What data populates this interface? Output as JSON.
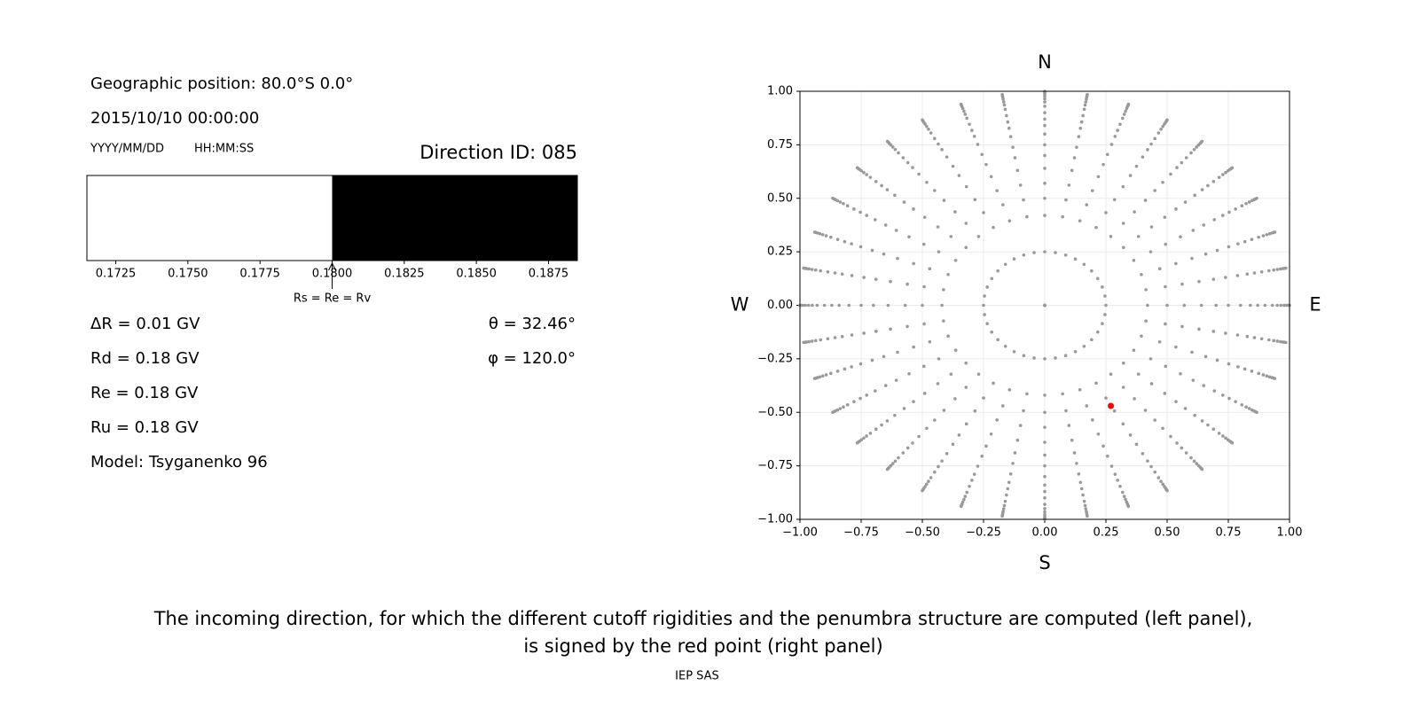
{
  "info": {
    "position": "Geographic position: 80.0°S 0.0°",
    "datetime": "2015/10/10 00:00:00",
    "date_format": "YYYY/MM/DD",
    "time_format": "HH:MM:SS",
    "direction": "Direction ID: 085",
    "delta_r": "ΔR = 0.01 GV",
    "rd": "Rd = 0.18 GV",
    "re": "Re = 0.18 GV",
    "ru": "Ru = 0.18 GV",
    "model": "Model: Tsyganenko 96",
    "theta": "θ = 32.46°",
    "phi": "φ = 120.0°"
  },
  "caption": [
    "The incoming direction, for which the different cutoff rigidities and the penumbra structure are computed (left panel),",
    "is signed by the red point (right panel)"
  ],
  "footer": "IEP SAS",
  "chart_data": [
    {
      "type": "penumbra",
      "xlim": [
        0.1715,
        0.1885
      ],
      "xticks": [
        0.1725,
        {
          "value": 0.175,
          "label": "0.1750"
        },
        0.1775,
        {
          "value": 0.18,
          "label": "0.1800"
        },
        0.1825,
        {
          "value": 0.185,
          "label": "0.1850"
        },
        0.1875
      ],
      "boundary": 0.18,
      "colors": [
        "#ffffff",
        "#000000"
      ],
      "annotation": "Rs = Re = Rv"
    },
    {
      "type": "scatter",
      "xlim": [
        -1,
        1
      ],
      "ylim": [
        -1,
        1
      ],
      "xticks": [
        {
          "value": -1,
          "label": "−1.00"
        },
        {
          "value": -0.75,
          "label": "−0.75"
        },
        {
          "value": -0.5,
          "label": "−0.50"
        },
        {
          "value": -0.25,
          "label": "−0.25"
        },
        {
          "value": 0,
          "label": "0.00"
        },
        0.25,
        {
          "value": 0.5,
          "label": "0.50"
        },
        0.75,
        {
          "value": 1,
          "label": "1.00"
        }
      ],
      "yticks": [
        {
          "value": -1,
          "label": "−1.00"
        },
        {
          "value": -0.75,
          "label": "−0.75"
        },
        {
          "value": -0.5,
          "label": "−0.50"
        },
        {
          "value": -0.25,
          "label": "−0.25"
        },
        {
          "value": 0,
          "label": "0.00"
        },
        0.25,
        {
          "value": 0.5,
          "label": "0.50"
        },
        0.75,
        {
          "value": 1,
          "label": "1.00"
        }
      ],
      "grid": true,
      "compass": {
        "top": "N",
        "bottom": "S",
        "left": "W",
        "right": "E"
      },
      "grid_points": {
        "color": "#999999",
        "azimuths": [
          0,
          10,
          20,
          30,
          40,
          50,
          60,
          70,
          80,
          90,
          100,
          110,
          120,
          130,
          140,
          150,
          160,
          170,
          180,
          190,
          200,
          210,
          220,
          230,
          240,
          250,
          260,
          270,
          280,
          290,
          300,
          310,
          320,
          330,
          340,
          350
        ],
        "radii": [
          0,
          0.25,
          0.42,
          0.5,
          0.57,
          0.64,
          0.7,
          0.75,
          0.8,
          0.84,
          0.87,
          0.9,
          0.93,
          0.95,
          0.965,
          0.978,
          0.988,
          0.995,
          1.0
        ]
      },
      "highlight": {
        "x": 0.27,
        "y": -0.47,
        "color": "#ff0000"
      }
    }
  ]
}
